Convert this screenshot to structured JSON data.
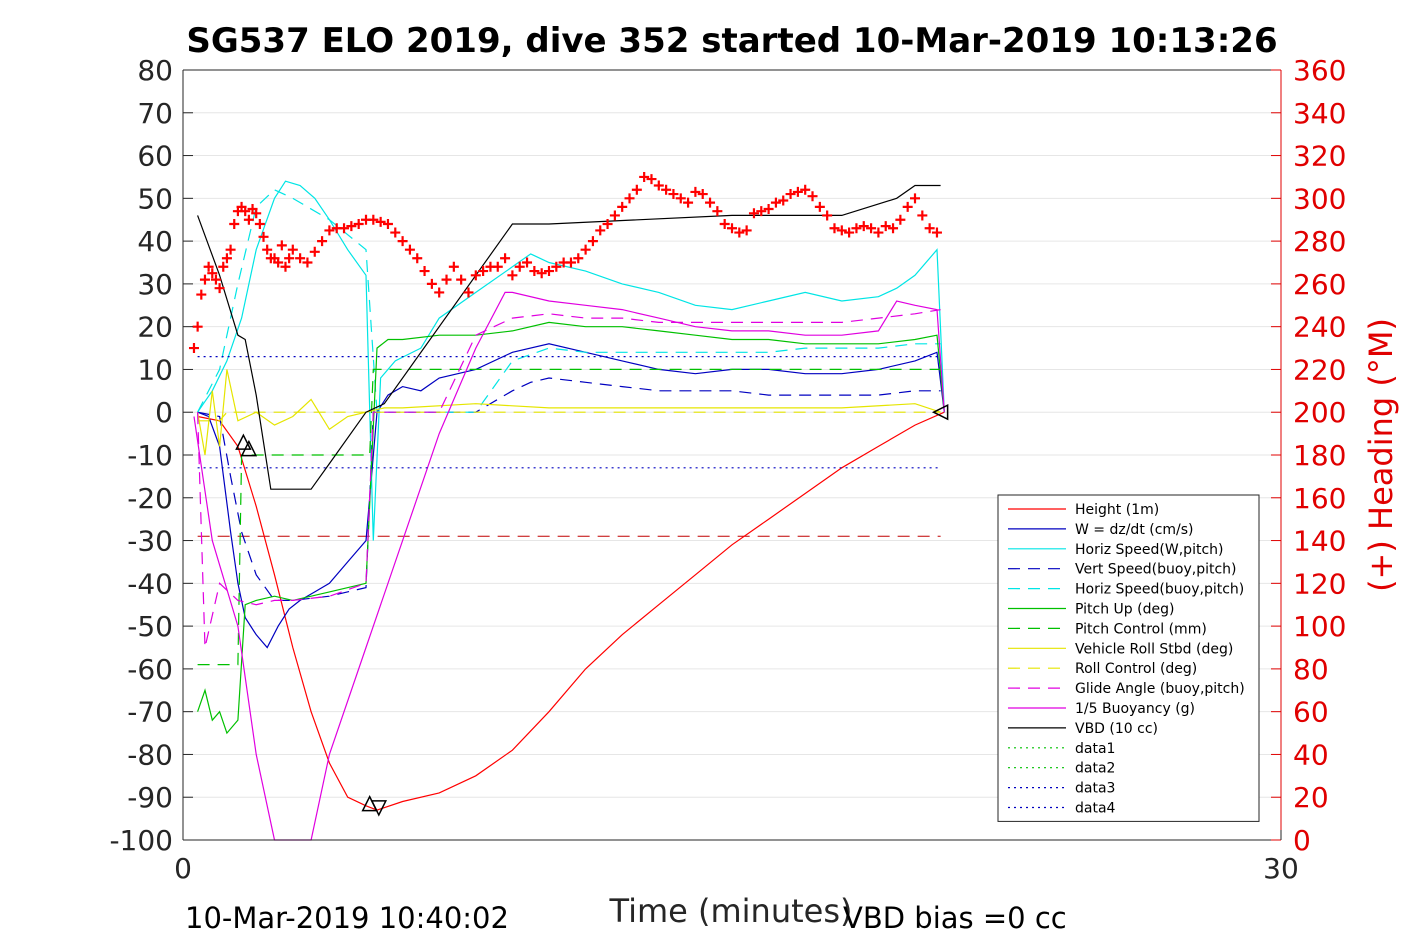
{
  "chart_data": {
    "type": "line",
    "title": "SG537 ELO 2019, dive 352 started 10-Mar-2019 10:13:26",
    "xlabel": "Time (minutes)",
    "ylabel_right": "(+) Heading (°M)",
    "footer_left": "10-Mar-2019 10:40:02",
    "footer_right": "VBD bias =0 cc",
    "xlim": [
      0,
      30
    ],
    "ylim": [
      -100,
      80
    ],
    "ylim_right": [
      0,
      360
    ],
    "x_ticks": [
      0,
      30
    ],
    "x_tick_labels": [
      "0",
      "30"
    ],
    "y_ticks": [
      80,
      70,
      60,
      50,
      40,
      30,
      20,
      10,
      0,
      -10,
      -20,
      -30,
      -40,
      -50,
      -60,
      -70,
      -80,
      -90,
      -100
    ],
    "y_tick_labels": [
      "80",
      "70",
      "60",
      "50",
      "40",
      "30",
      "20",
      "10",
      "0",
      "-10",
      "-20",
      "-30",
      "-40",
      "-50",
      "-60",
      "-70",
      "-80",
      "-90",
      "-100"
    ],
    "y2_ticks": [
      360,
      340,
      320,
      300,
      280,
      260,
      240,
      220,
      200,
      180,
      160,
      140,
      120,
      100,
      80,
      60,
      40,
      20,
      0
    ],
    "y2_tick_labels": [
      "360",
      "340",
      "320",
      "300",
      "280",
      "260",
      "240",
      "220",
      "200",
      "180",
      "160",
      "140",
      "120",
      "100",
      "80",
      "60",
      "40",
      "20",
      "0"
    ],
    "grid": "horizontal",
    "legend_position": "lower-right",
    "series": [
      {
        "name": "Height (1m)",
        "color": "#ff0000",
        "style": "solid",
        "x": [
          0.4,
          1.0,
          1.5,
          2.0,
          2.5,
          3.0,
          3.5,
          4.0,
          4.5,
          5.0,
          5.3,
          6.0,
          7.0,
          8.0,
          9.0,
          10.0,
          11.0,
          12.0,
          13.0,
          14.0,
          15.0,
          16.0,
          17.0,
          18.0,
          19.0,
          20.0,
          20.8
        ],
        "y": [
          -1,
          -2,
          -8,
          -22,
          -38,
          -55,
          -70,
          -82,
          -90,
          -92,
          -93,
          -91,
          -89,
          -85,
          -79,
          -70,
          -60,
          -52,
          -45,
          -38,
          -31,
          -25,
          -19,
          -13,
          -8,
          -3,
          0
        ]
      },
      {
        "name": "W = dz/dt (cm/s)",
        "color": "#0000c0",
        "style": "solid",
        "x": [
          0.4,
          0.7,
          1.0,
          1.3,
          1.5,
          1.7,
          2.0,
          2.3,
          2.6,
          2.9,
          3.2,
          3.6,
          4.0,
          4.5,
          5.0,
          5.1,
          5.3,
          5.6,
          6.0,
          6.5,
          7.0,
          8.0,
          9.0,
          10.0,
          11.0,
          12.0,
          13.0,
          14.0,
          15.0,
          16.0,
          17.0,
          18.0,
          19.0,
          20.0,
          20.6,
          20.8
        ],
        "y": [
          0,
          -1,
          -8,
          -28,
          -40,
          -48,
          -52,
          -55,
          -50,
          -46,
          -44,
          -42,
          -40,
          -35,
          -30,
          -20,
          0,
          4,
          6,
          5,
          8,
          10,
          14,
          16,
          14,
          12,
          10,
          9,
          10,
          10,
          9,
          9,
          10,
          12,
          14,
          0
        ]
      },
      {
        "name": "Horiz Speed(W,pitch)",
        "color": "#00e5e5",
        "style": "solid",
        "x": [
          0.4,
          0.8,
          1.2,
          1.6,
          2.0,
          2.5,
          2.8,
          3.2,
          3.6,
          4.0,
          4.5,
          5.0,
          5.2,
          5.4,
          5.8,
          6.5,
          7.0,
          8.0,
          9.0,
          9.5,
          10.0,
          11.0,
          12.0,
          13.0,
          14.0,
          15.0,
          16.0,
          17.0,
          18.0,
          19.0,
          19.5,
          20.0,
          20.6,
          20.8
        ],
        "y": [
          0,
          5,
          12,
          22,
          38,
          50,
          54,
          53,
          50,
          45,
          38,
          32,
          -30,
          8,
          12,
          15,
          22,
          28,
          34,
          37,
          35,
          33,
          30,
          28,
          25,
          24,
          26,
          28,
          26,
          27,
          29,
          32,
          38,
          0
        ]
      },
      {
        "name": "Vert Speed(buoy,pitch)",
        "color": "#0000c0",
        "style": "dashed",
        "x": [
          0.4,
          1.0,
          1.3,
          1.6,
          2.0,
          2.5,
          3.0,
          4.0,
          5.0,
          5.2,
          5.5,
          6.0,
          7.0,
          8.0,
          9.0,
          9.5,
          10.0,
          11.0,
          12.0,
          13.0,
          14.0,
          15.0,
          16.0,
          17.0,
          18.0,
          19.0,
          20.0,
          20.7
        ],
        "y": [
          0,
          -1,
          -15,
          -28,
          -38,
          -44,
          -44,
          -43,
          -41,
          0,
          0,
          0,
          0,
          0,
          5,
          7,
          8,
          7,
          6,
          5,
          5,
          5,
          4,
          4,
          4,
          4,
          5,
          5
        ]
      },
      {
        "name": "Horiz Speed(buoy,pitch)",
        "color": "#00e5e5",
        "style": "dashed",
        "x": [
          0.4,
          1.0,
          1.5,
          2.0,
          2.5,
          3.0,
          4.0,
          5.0,
          5.3,
          5.6,
          6.0,
          7.0,
          8.0,
          9.0,
          10.0,
          11.0,
          12.0,
          13.0,
          14.0,
          15.0,
          16.0,
          17.0,
          18.0,
          19.0,
          20.0,
          20.7
        ],
        "y": [
          0,
          10,
          30,
          48,
          52,
          50,
          45,
          38,
          0,
          0,
          0,
          0,
          0,
          12,
          15,
          14,
          14,
          14,
          14,
          14,
          14,
          15,
          15,
          15,
          16,
          16
        ]
      },
      {
        "name": "Pitch Up (deg)",
        "color": "#00c000",
        "style": "solid",
        "x": [
          0.4,
          0.6,
          0.8,
          1.0,
          1.2,
          1.5,
          1.7,
          2.0,
          2.5,
          3.0,
          4.0,
          5.0,
          5.3,
          5.6,
          6.0,
          7.0,
          8.0,
          9.0,
          10.0,
          11.0,
          12.0,
          13.0,
          14.0,
          15.0,
          16.0,
          17.0,
          18.0,
          19.0,
          20.0,
          20.6,
          20.8
        ],
        "y": [
          -70,
          -65,
          -72,
          -70,
          -75,
          -72,
          -45,
          -44,
          -43,
          -44,
          -42,
          -40,
          15,
          17,
          17,
          18,
          18,
          19,
          21,
          20,
          20,
          19,
          18,
          17,
          17,
          16,
          16,
          16,
          17,
          18,
          0
        ]
      },
      {
        "name": "Pitch Control (mm)",
        "color": "#00c000",
        "style": "dashed",
        "x": [
          0.4,
          1.5,
          1.6,
          5.1,
          5.2,
          20.7
        ],
        "y": [
          -59,
          -59,
          -10,
          -10,
          10,
          10
        ]
      },
      {
        "name": "Vehicle Roll Stbd (deg)",
        "color": "#e5e500",
        "style": "solid",
        "x": [
          0.4,
          0.6,
          0.8,
          1.0,
          1.2,
          1.5,
          2.0,
          2.5,
          3.0,
          3.5,
          4.0,
          4.5,
          5.0,
          5.5,
          6.0,
          8.0,
          10.0,
          12.0,
          14.0,
          16.0,
          18.0,
          20.0,
          20.7
        ],
        "y": [
          0,
          -10,
          5,
          -8,
          10,
          -2,
          0,
          -3,
          -1,
          3,
          -4,
          -1,
          0,
          1,
          1,
          2,
          1,
          1,
          1,
          1,
          1,
          2,
          0
        ]
      },
      {
        "name": "Roll Control (deg)",
        "color": "#e5e500",
        "style": "dashed",
        "x": [
          0.4,
          1.0,
          1.2,
          20.7
        ],
        "y": [
          -2,
          -2,
          0,
          0
        ]
      },
      {
        "name": "Glide Angle (buoy,pitch)",
        "color": "#e000e0",
        "style": "dashed",
        "x": [
          0.4,
          0.6,
          1.0,
          1.5,
          2.0,
          2.5,
          3.0,
          4.0,
          5.0,
          5.2,
          5.5,
          6.0,
          7.0,
          8.0,
          9.0,
          10.0,
          11.0,
          12.0,
          13.0,
          14.0,
          15.0,
          16.0,
          17.0,
          18.0,
          19.0,
          20.0,
          20.7
        ],
        "y": [
          0,
          -55,
          -40,
          -44,
          -45,
          -44,
          -44,
          -43,
          -40,
          0,
          0,
          0,
          0,
          18,
          22,
          23,
          22,
          22,
          21,
          21,
          21,
          21,
          21,
          21,
          22,
          23,
          24
        ]
      },
      {
        "name": "1/5 Buoyancy (g)",
        "color": "#e000e0",
        "style": "solid",
        "x": [
          0.3,
          0.8,
          1.5,
          2.0,
          2.5,
          3.5,
          4.0,
          5.0,
          6.0,
          7.0,
          8.0,
          8.8,
          9.0,
          10.0,
          11.0,
          12.0,
          13.0,
          14.0,
          15.0,
          16.0,
          17.0,
          18.0,
          19.0,
          19.5,
          20.0,
          20.6,
          20.8
        ],
        "y": [
          -1,
          -30,
          -50,
          -80,
          -100,
          -100,
          -80,
          -55,
          -30,
          -5,
          15,
          28,
          28,
          26,
          25,
          24,
          22,
          20,
          19,
          19,
          18,
          18,
          19,
          26,
          25,
          24,
          0
        ]
      },
      {
        "name": "VBD (10 cc)",
        "color": "#000000",
        "style": "solid",
        "x": [
          0.4,
          1.0,
          1.5,
          1.7,
          2.0,
          2.4,
          3.5,
          4.0,
          5.0,
          5.5,
          9.0,
          10.0,
          15.0,
          18.0,
          19.5,
          20.0,
          20.7
        ],
        "y": [
          46,
          32,
          18,
          17,
          4,
          -18,
          -18,
          -12,
          0,
          2,
          44,
          44,
          46,
          46,
          50,
          53,
          53
        ]
      },
      {
        "name": "data1",
        "color": "#00c000",
        "style": "dotted",
        "x": [],
        "y": []
      },
      {
        "name": "data2",
        "color": "#00c000",
        "style": "dotted",
        "x": [],
        "y": []
      },
      {
        "name": "data3",
        "color": "#0000c0",
        "style": "dotted",
        "x": [
          0.4,
          20.7
        ],
        "y": [
          13,
          13
        ]
      },
      {
        "name": "data4",
        "color": "#0000c0",
        "style": "dotted",
        "x": [
          0.4,
          20.7
        ],
        "y": [
          -13,
          -13
        ]
      }
    ],
    "reference_lines": [
      {
        "color": "#c00000",
        "style": "dashed",
        "y": -29,
        "x": [
          0.4,
          20.7
        ]
      }
    ],
    "heading_series": {
      "axis": "right",
      "color": "#ff0000",
      "marker": "+",
      "x": [
        0.3,
        0.4,
        0.5,
        0.6,
        0.7,
        0.8,
        0.9,
        1.0,
        1.1,
        1.2,
        1.3,
        1.4,
        1.5,
        1.6,
        1.7,
        1.8,
        1.9,
        2.0,
        2.1,
        2.2,
        2.3,
        2.4,
        2.5,
        2.6,
        2.7,
        2.8,
        2.9,
        3.0,
        3.2,
        3.4,
        3.6,
        3.8,
        4.0,
        4.2,
        4.4,
        4.6,
        4.8,
        5.0,
        5.2,
        5.4,
        5.6,
        5.8,
        6.0,
        6.2,
        6.4,
        6.6,
        6.8,
        7.0,
        7.2,
        7.4,
        7.6,
        7.8,
        8.0,
        8.2,
        8.4,
        8.6,
        8.8,
        9.0,
        9.2,
        9.4,
        9.6,
        9.8,
        10.0,
        10.2,
        10.4,
        10.6,
        10.8,
        11.0,
        11.2,
        11.4,
        11.6,
        11.8,
        12.0,
        12.2,
        12.4,
        12.6,
        12.8,
        13.0,
        13.2,
        13.4,
        13.6,
        13.8,
        14.0,
        14.2,
        14.4,
        14.6,
        14.8,
        15.0,
        15.2,
        15.4,
        15.6,
        15.8,
        16.0,
        16.2,
        16.4,
        16.6,
        16.8,
        17.0,
        17.2,
        17.4,
        17.6,
        17.8,
        18.0,
        18.2,
        18.4,
        18.6,
        18.8,
        19.0,
        19.2,
        19.4,
        19.6,
        19.8,
        20.0,
        20.2,
        20.4,
        20.6
      ],
      "y": [
        230,
        240,
        255,
        262,
        268,
        265,
        262,
        258,
        268,
        272,
        276,
        288,
        294,
        296,
        294,
        290,
        295,
        293,
        288,
        282,
        276,
        272,
        272,
        270,
        278,
        268,
        272,
        276,
        272,
        270,
        275,
        280,
        285,
        286,
        286,
        287,
        288,
        290,
        290,
        289,
        288,
        284,
        280,
        276,
        272,
        266,
        260,
        256,
        262,
        268,
        262,
        256,
        264,
        266,
        268,
        268,
        272,
        264,
        268,
        270,
        266,
        265,
        266,
        268,
        270,
        270,
        272,
        276,
        280,
        285,
        288,
        292,
        296,
        300,
        304,
        310,
        309,
        306,
        304,
        302,
        300,
        298,
        303,
        302,
        298,
        294,
        288,
        286,
        284,
        285,
        293,
        294,
        295,
        298,
        299,
        302,
        303,
        304,
        301,
        296,
        292,
        286,
        285,
        284,
        286,
        287,
        286,
        284,
        287,
        286,
        290,
        296,
        300,
        292,
        286,
        284
      ]
    },
    "markers": [
      {
        "type": "triangle-up",
        "x": 1.65,
        "y": -7
      },
      {
        "type": "triangle-up",
        "x": 1.8,
        "y": -8.5
      },
      {
        "type": "triangle-up",
        "x": 5.1,
        "y": -91.5
      },
      {
        "type": "triangle-down",
        "x": 5.35,
        "y": -92.5
      },
      {
        "type": "triangle-left",
        "x": 20.7,
        "y": 0
      }
    ]
  }
}
